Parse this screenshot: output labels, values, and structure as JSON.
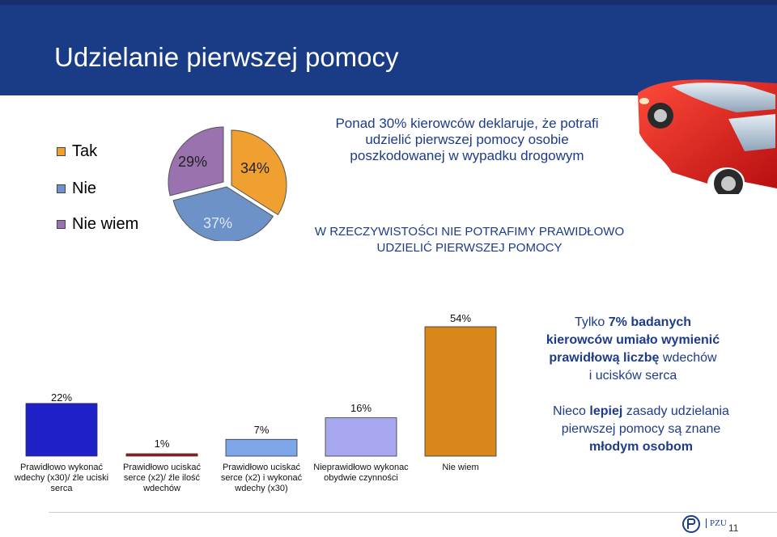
{
  "header": {
    "title": "Udzielanie pierwszej pomocy"
  },
  "pie_legend": [
    {
      "label": "Tak",
      "color": "#f0a030"
    },
    {
      "label": "Nie",
      "color": "#6d92c8"
    },
    {
      "label": "Nie wiem",
      "color": "#9a72b0"
    }
  ],
  "pie_labels": {
    "tak": "34%",
    "nie": "37%",
    "nie_wiem": "29%"
  },
  "headline": {
    "line1": "Ponad 30% kierowców deklaruje, że potrafi",
    "line2": "udzielić pierwszej pomocy osobie",
    "line3": "poszkodowanej w wypadku drogowym"
  },
  "reality": {
    "line1": "W RZECZYWISTOŚCI NIE POTRAFIMY PRAWIDŁOWO",
    "line2": "UDZIELIĆ PIERWSZEJ POMOCY"
  },
  "side_note_1": {
    "a": "Tylko ",
    "b": "7% badanych",
    "c": "kierowców umiało wymienić",
    "d": "prawidłową liczbę",
    "e": " wdechów",
    "f": "i ucisków serca"
  },
  "side_note_2": {
    "a": "Nieco ",
    "b": "lepiej",
    "c": " zasady udzielania",
    "d": "pierwszej pomocy są znane",
    "e": "młodym osobom"
  },
  "bar_labels": [
    {
      "l1": "Prawidłowo wykonać",
      "l2": "wdechy (x30)/ źle uciski",
      "l3": "serca"
    },
    {
      "l1": "Prawidłowo uciskać",
      "l2": "serce (x2)/ źle ilość",
      "l3": "wdechów"
    },
    {
      "l1": "Prawidłowo uciskać",
      "l2": "serce (x2) i wykonać",
      "l3": "wdechy (x30)"
    },
    {
      "l1": "Nieprawidłowo wykonac",
      "l2": "obydwie czynności",
      "l3": ""
    },
    {
      "l1": "Nie wiem",
      "l2": "",
      "l3": ""
    }
  ],
  "bar_value_labels": [
    "22%",
    "1%",
    "7%",
    "16%",
    "54%"
  ],
  "footer": {
    "logo": "PZU",
    "page": "11"
  },
  "chart_data": [
    {
      "type": "pie",
      "categories": [
        "Tak",
        "Nie",
        "Nie wiem"
      ],
      "values": [
        34,
        37,
        29
      ],
      "colors": [
        "#f0a030",
        "#6d92c8",
        "#9a72b0"
      ],
      "legend": "left"
    },
    {
      "type": "bar",
      "categories": [
        "Prawidłowo wykonać wdechy (x30)/ źle uciski serca",
        "Prawidłowo uciskać serce (x2)/ źle ilość wdechów",
        "Prawidłowo uciskać serce (x2) i wykonać wdechy (x30)",
        "Nieprawidłowo wykonac obydwie czynności",
        "Nie wiem"
      ],
      "values": [
        22,
        1,
        7,
        16,
        54
      ],
      "colors": [
        "#2020c8",
        "#a01818",
        "#7fa6e8",
        "#a8a8f0",
        "#d8871a"
      ],
      "ylim": [
        0,
        54
      ]
    }
  ]
}
